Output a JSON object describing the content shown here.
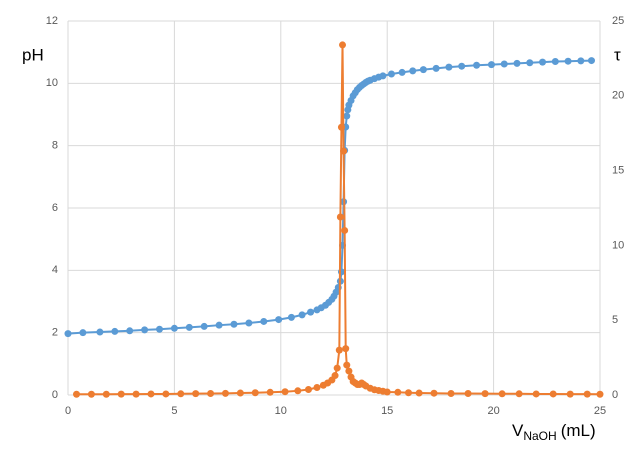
{
  "chart_data": {
    "type": "line",
    "y_label": "pH",
    "y2_label": "τ",
    "x_label": {
      "main": "V",
      "sub": "NaOH",
      "unit": "(mL)"
    },
    "xlim": [
      0,
      25
    ],
    "xticks": [
      0,
      5,
      10,
      15,
      20,
      25
    ],
    "ylim": [
      0,
      12
    ],
    "yticks": [
      0,
      2,
      4,
      6,
      8,
      10,
      12
    ],
    "y2lim": [
      0,
      25
    ],
    "y2ticks": [
      0,
      5,
      10,
      15,
      20,
      25
    ],
    "grid": true,
    "series": [
      {
        "color": "#5b9bd5",
        "axis": "y",
        "x": [
          0,
          0.7,
          1.5,
          2.2,
          2.9,
          3.6,
          4.3,
          5,
          5.7,
          6.4,
          7.1,
          7.8,
          8.5,
          9.2,
          9.9,
          10.5,
          11,
          11.4,
          11.7,
          11.9,
          12.1,
          12.25,
          12.4,
          12.5,
          12.6,
          12.7,
          12.8,
          12.85,
          12.9,
          12.95,
          13,
          13.05,
          13.1,
          13.15,
          13.2,
          13.3,
          13.4,
          13.5,
          13.6,
          13.7,
          13.8,
          13.9,
          14,
          14.1,
          14.2,
          14.4,
          14.6,
          14.8,
          15.2,
          15.7,
          16.2,
          16.7,
          17.3,
          17.9,
          18.5,
          19.2,
          19.9,
          20.5,
          21.1,
          21.7,
          22.3,
          22.9,
          23.5,
          24.1,
          24.6
        ],
        "values": [
          1.97,
          2.0,
          2.02,
          2.04,
          2.06,
          2.09,
          2.11,
          2.14,
          2.17,
          2.2,
          2.24,
          2.27,
          2.31,
          2.36,
          2.42,
          2.49,
          2.57,
          2.66,
          2.73,
          2.8,
          2.88,
          2.97,
          3.07,
          3.17,
          3.3,
          3.45,
          3.65,
          3.95,
          4.8,
          6.2,
          7.85,
          8.6,
          8.95,
          9.15,
          9.3,
          9.45,
          9.6,
          9.7,
          9.8,
          9.87,
          9.93,
          9.98,
          10.03,
          10.07,
          10.1,
          10.15,
          10.2,
          10.24,
          10.3,
          10.35,
          10.4,
          10.44,
          10.48,
          10.52,
          10.55,
          10.58,
          10.6,
          10.62,
          10.64,
          10.66,
          10.68,
          10.7,
          10.71,
          10.72,
          10.73
        ]
      },
      {
        "color": "#ed7d31",
        "axis": "y2",
        "x": [
          0.4,
          1.1,
          1.8,
          2.5,
          3.2,
          3.9,
          4.6,
          5.3,
          6,
          6.7,
          7.4,
          8.1,
          8.8,
          9.5,
          10.2,
          10.8,
          11.3,
          11.7,
          12,
          12.2,
          12.4,
          12.55,
          12.65,
          12.75,
          12.8,
          12.85,
          12.9,
          12.95,
          13,
          13.05,
          13.1,
          13.2,
          13.3,
          13.4,
          13.5,
          13.6,
          13.7,
          13.8,
          13.9,
          14,
          14.2,
          14.4,
          14.6,
          14.8,
          15,
          15.5,
          16,
          16.5,
          17.2,
          18,
          18.8,
          19.6,
          20.4,
          21.2,
          22,
          22.8,
          23.6,
          24.4,
          25
        ],
        "values": [
          0.05,
          0.05,
          0.05,
          0.06,
          0.06,
          0.07,
          0.07,
          0.08,
          0.09,
          0.1,
          0.11,
          0.13,
          0.15,
          0.18,
          0.22,
          0.28,
          0.37,
          0.5,
          0.65,
          0.8,
          1.0,
          1.3,
          1.8,
          3.0,
          11.9,
          17.9,
          23.4,
          16.3,
          11.0,
          3.1,
          2.0,
          1.6,
          1.2,
          0.9,
          0.8,
          0.7,
          0.7,
          0.8,
          0.7,
          0.6,
          0.45,
          0.35,
          0.3,
          0.25,
          0.2,
          0.18,
          0.15,
          0.13,
          0.12,
          0.1,
          0.1,
          0.09,
          0.08,
          0.08,
          0.07,
          0.07,
          0.06,
          0.06,
          0.05
        ]
      }
    ]
  }
}
